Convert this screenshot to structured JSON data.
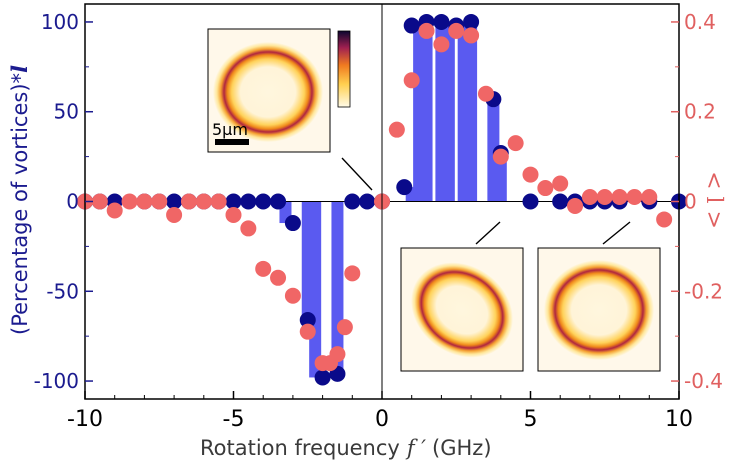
{
  "chart_data": {
    "type": "scatter",
    "title": "",
    "xlabel": "Rotation frequency",
    "xlabel_symbol": "f ′",
    "xlabel_unit": "(GHz)",
    "ylabel_left": "(Percentage of vortices)*",
    "ylabel_left_symbol": "l",
    "ylabel_right": "< l >",
    "xlim": [
      -10,
      10
    ],
    "ylim_left": [
      -110,
      110
    ],
    "ylim_right": [
      -0.44,
      0.44
    ],
    "x_ticks": [
      -10,
      -5,
      0,
      5,
      10
    ],
    "x_tick_labels": [
      "-10",
      "-5",
      "0",
      "5",
      "10"
    ],
    "y_left_ticks": [
      -100,
      -50,
      0,
      50,
      100
    ],
    "y_left_tick_labels": [
      "-100",
      "-50",
      "0",
      "50",
      "100"
    ],
    "y_right_ticks": [
      -0.4,
      -0.2,
      0,
      0.2,
      0.4
    ],
    "y_right_tick_labels": [
      "-0.4",
      "-0.2",
      "0",
      "0.2",
      "0.4"
    ],
    "colors": {
      "axis": "#000000",
      "left_axis": "#1b1b8f",
      "right_axis": "#e06060",
      "bars": "#5a5af0",
      "vortex_points": "#0a0a8a",
      "mean_points": "#f06666"
    },
    "series": [
      {
        "role": "bars",
        "axis": "left",
        "x": [
          -3.25,
          -2.5,
          -2.25,
          -1.5,
          1.0,
          1.25,
          1.5,
          2.0,
          2.25,
          2.75,
          3.0,
          3.75,
          4.0
        ],
        "values": [
          -12,
          -66,
          -98,
          -96,
          8,
          98,
          100,
          100,
          98,
          100,
          100,
          57,
          27
        ]
      },
      {
        "role": "vortex_points",
        "axis": "left",
        "x": [
          -10,
          -9.5,
          -9,
          -8,
          -7.5,
          -7,
          -6.5,
          -6,
          -5.5,
          -5,
          -4.5,
          -4,
          -3.5,
          -3,
          -2.5,
          -2,
          -1.5,
          -1,
          -0.5,
          0,
          0.75,
          1,
          1.5,
          2,
          2.5,
          3,
          3.75,
          4,
          5,
          6,
          6.5,
          7,
          7.5,
          8,
          9,
          10
        ],
        "values": [
          0,
          0,
          0,
          0,
          0,
          0,
          0,
          0,
          0,
          0,
          0,
          0,
          0,
          -12,
          -66,
          -98,
          -96,
          0,
          0,
          0,
          8,
          98,
          100,
          100,
          98,
          100,
          57,
          27,
          0,
          0,
          0,
          0,
          0,
          0,
          0,
          0
        ]
      },
      {
        "role": "mean_points",
        "axis": "right",
        "x": [
          -10,
          -9.5,
          -9,
          -8.5,
          -8,
          -7.5,
          -7,
          -6.5,
          -6,
          -5.5,
          -5,
          -4.5,
          -4,
          -3.5,
          -3,
          -2.5,
          -2,
          -1.75,
          -1.5,
          -1.25,
          -1,
          0,
          0.5,
          1,
          1.5,
          2,
          2.5,
          3,
          3.5,
          4,
          4.5,
          5,
          5.5,
          6,
          6.5,
          7,
          7.5,
          8,
          8.5,
          9,
          9.5
        ],
        "values": [
          0,
          0,
          -0.02,
          0,
          0,
          0,
          -0.03,
          0,
          0,
          0,
          -0.03,
          -0.06,
          -0.15,
          -0.17,
          -0.21,
          -0.29,
          -0.36,
          -0.36,
          -0.34,
          -0.28,
          -0.16,
          0,
          0.16,
          0.27,
          0.38,
          0.35,
          0.38,
          0.37,
          0.24,
          0.1,
          0.13,
          0.06,
          0.03,
          0.04,
          -0.01,
          0.01,
          0.01,
          0.01,
          0.01,
          0.01,
          -0.04
        ]
      }
    ],
    "insets": [
      {
        "name": "density-inset-zero",
        "scale_bar_label": "5µm"
      },
      {
        "name": "density-inset-positive"
      },
      {
        "name": "density-inset-high"
      }
    ]
  }
}
